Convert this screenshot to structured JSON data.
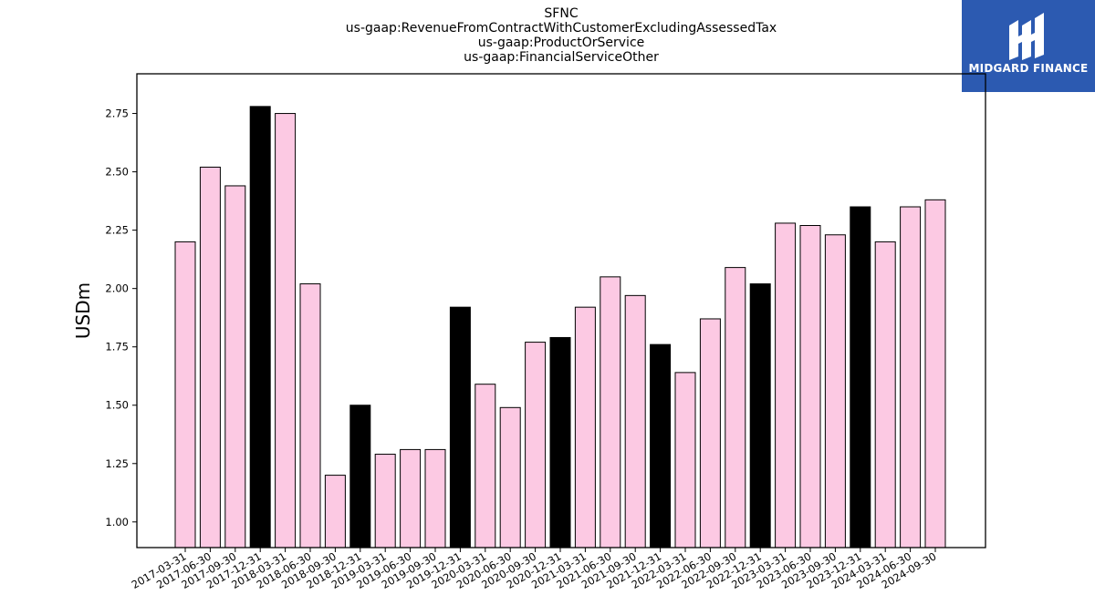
{
  "logo": {
    "text": "MIDGARD FINANCE",
    "background": "#2c5ab1"
  },
  "chart_data": {
    "type": "bar",
    "title_lines": [
      "SFNC",
      "us-gaap:RevenueFromContractWithCustomerExcludingAssessedTax",
      "us-gaap:ProductOrService",
      "us-gaap:FinancialServiceOther"
    ],
    "xlabel": "",
    "ylabel": "USDm",
    "ylim": [
      0.89,
      2.92
    ],
    "yticks": [
      1.0,
      1.25,
      1.5,
      1.75,
      2.0,
      2.25,
      2.5,
      2.75
    ],
    "ytick_labels": [
      "1.00",
      "1.25",
      "1.50",
      "1.75",
      "2.00",
      "2.25",
      "2.50",
      "2.75"
    ],
    "categories": [
      "2017-03-31",
      "2017-06-30",
      "2017-09-30",
      "2017-12-31",
      "2018-03-31",
      "2018-06-30",
      "2018-09-30",
      "2018-12-31",
      "2019-03-31",
      "2019-06-30",
      "2019-09-30",
      "2019-12-31",
      "2020-03-31",
      "2020-06-30",
      "2020-09-30",
      "2020-12-31",
      "2021-03-31",
      "2021-06-30",
      "2021-09-30",
      "2021-12-31",
      "2022-03-31",
      "2022-06-30",
      "2022-09-30",
      "2022-12-31",
      "2023-03-31",
      "2023-06-30",
      "2023-09-30",
      "2023-12-31",
      "2024-03-31",
      "2024-06-30",
      "2024-09-30"
    ],
    "values": [
      2.2,
      2.52,
      2.44,
      2.78,
      2.75,
      2.02,
      1.2,
      1.5,
      1.29,
      1.31,
      1.31,
      1.92,
      1.59,
      1.49,
      1.77,
      1.79,
      1.92,
      2.05,
      1.97,
      1.76,
      1.64,
      1.87,
      2.09,
      2.02,
      2.28,
      2.27,
      2.23,
      2.35,
      2.2,
      2.35,
      2.38
    ],
    "highlight_categories": [
      "2017-12-31",
      "2018-12-31",
      "2019-12-31",
      "2020-12-31",
      "2021-12-31",
      "2022-12-31",
      "2023-12-31"
    ],
    "colors": {
      "bar": "#fcc9e3",
      "highlight": "#000000",
      "edge": "#000000"
    },
    "grid": false,
    "legend": "none"
  }
}
